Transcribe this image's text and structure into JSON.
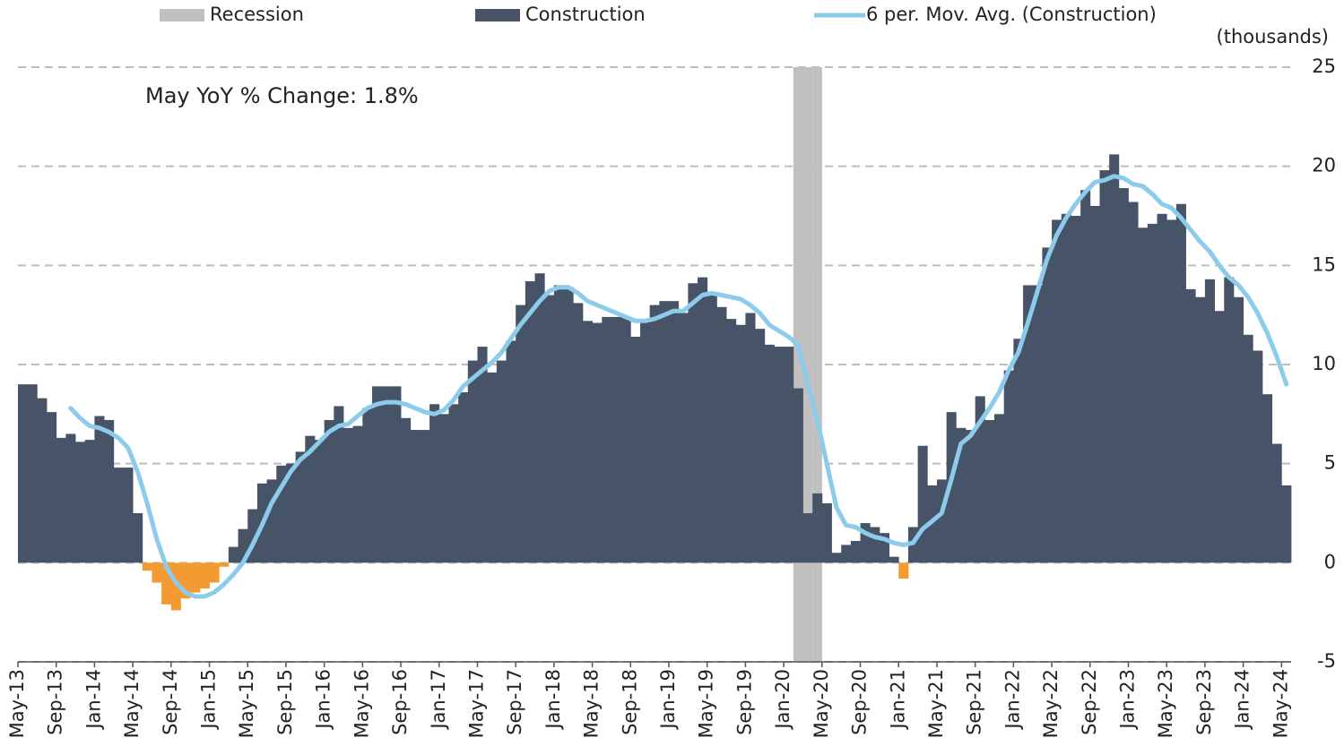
{
  "chart_data": {
    "type": "combo",
    "annotation": "May YoY % Change: 1.8%",
    "y_label": "(thousands)",
    "negative_color": "#f39a32",
    "categories": [
      "May-13",
      null,
      null,
      null,
      "Sep-13",
      null,
      null,
      null,
      "Jan-14",
      null,
      null,
      null,
      "May-14",
      null,
      null,
      null,
      "Sep-14",
      null,
      null,
      null,
      "Jan-15",
      null,
      null,
      null,
      "May-15",
      null,
      null,
      null,
      "Sep-15",
      null,
      null,
      null,
      "Jan-16",
      null,
      null,
      null,
      "May-16",
      null,
      null,
      null,
      "Sep-16",
      null,
      null,
      null,
      "Jan-17",
      null,
      null,
      null,
      "May-17",
      null,
      null,
      null,
      "Sep-17",
      null,
      null,
      null,
      "Jan-18",
      null,
      null,
      null,
      "May-18",
      null,
      null,
      null,
      "Sep-18",
      null,
      null,
      null,
      "Jan-19",
      null,
      null,
      null,
      "May-19",
      null,
      null,
      null,
      "Sep-19",
      null,
      null,
      null,
      "Jan-20",
      null,
      null,
      null,
      "May-20",
      null,
      null,
      null,
      "Sep-20",
      null,
      null,
      null,
      "Jan-21",
      null,
      null,
      null,
      "May-21",
      null,
      null,
      null,
      "Sep-21",
      null,
      null,
      null,
      "Jan-22",
      null,
      null,
      null,
      "May-22",
      null,
      null,
      null,
      "Sep-22",
      null,
      null,
      null,
      "Jan-23",
      null,
      null,
      null,
      "May-23",
      null,
      null,
      null,
      "Sep-23",
      null,
      null,
      null,
      "Jan-24",
      null,
      null,
      null,
      "May-24"
    ],
    "series": [
      {
        "name": "Recession",
        "type": "band",
        "color": "#c0c0c0",
        "values": [
          null,
          null,
          null,
          null,
          null,
          null,
          null,
          null,
          null,
          null,
          null,
          null,
          null,
          null,
          null,
          null,
          null,
          null,
          null,
          null,
          null,
          null,
          null,
          null,
          null,
          null,
          null,
          null,
          null,
          null,
          null,
          null,
          null,
          null,
          null,
          null,
          null,
          null,
          null,
          null,
          null,
          null,
          null,
          null,
          null,
          null,
          null,
          null,
          null,
          null,
          null,
          null,
          null,
          null,
          null,
          null,
          null,
          null,
          null,
          null,
          null,
          null,
          null,
          null,
          null,
          null,
          null,
          null,
          null,
          null,
          null,
          null,
          null,
          null,
          null,
          null,
          null,
          null,
          null,
          null,
          null,
          25,
          25,
          25,
          null,
          null,
          null,
          null,
          null,
          null,
          null,
          null,
          null,
          null,
          null,
          null,
          null,
          null,
          null,
          null,
          null,
          null,
          null,
          null,
          null,
          null,
          null,
          null,
          null,
          null,
          null,
          null,
          null,
          null,
          null,
          null,
          null,
          null,
          null,
          null,
          null,
          null,
          null,
          null,
          null,
          null,
          null,
          null,
          null,
          null,
          null,
          null,
          null
        ]
      },
      {
        "name": "Construction",
        "type": "bar",
        "color": "#475468",
        "values": [
          9.0,
          9.0,
          8.3,
          7.6,
          6.3,
          6.5,
          6.1,
          6.2,
          7.4,
          7.2,
          4.8,
          4.8,
          2.5,
          -0.4,
          -1.0,
          -2.1,
          -2.4,
          -1.8,
          -1.5,
          -1.3,
          -1.0,
          -0.2,
          0.8,
          1.7,
          2.7,
          4.0,
          4.2,
          4.9,
          5.0,
          5.6,
          6.4,
          6.2,
          7.2,
          7.9,
          6.8,
          6.9,
          7.8,
          8.9,
          8.9,
          8.9,
          7.3,
          6.7,
          6.7,
          8.0,
          7.5,
          8.0,
          8.6,
          10.2,
          10.9,
          9.6,
          10.2,
          11.2,
          13.0,
          14.2,
          14.6,
          13.5,
          14.0,
          13.9,
          13.1,
          12.2,
          12.1,
          12.4,
          12.4,
          12.4,
          11.4,
          12.2,
          13.0,
          13.2,
          13.2,
          12.6,
          14.1,
          14.4,
          13.5,
          12.9,
          12.3,
          12.0,
          12.6,
          11.8,
          11.0,
          10.9,
          10.9,
          8.8,
          2.5,
          3.5,
          3.0,
          0.5,
          0.9,
          1.1,
          2.0,
          1.8,
          1.5,
          0.3,
          -0.8,
          1.8,
          5.9,
          3.9,
          4.2,
          7.6,
          6.8,
          6.7,
          8.4,
          7.2,
          7.5,
          9.7,
          11.3,
          14.0,
          14.0,
          15.9,
          17.3,
          17.6,
          17.5,
          18.8,
          18.0,
          19.8,
          20.6,
          18.9,
          18.2,
          16.9,
          17.1,
          17.6,
          17.3,
          18.1,
          13.8,
          13.4,
          14.3,
          12.7,
          14.4,
          13.4,
          11.5,
          10.7,
          8.5,
          6.0,
          3.9
        ]
      },
      {
        "name": "6 per. Mov. Avg. (Construction)",
        "type": "line",
        "color": "#8ccbec",
        "values": [
          null,
          null,
          null,
          null,
          null,
          7.8,
          7.3,
          6.9,
          6.8,
          6.6,
          6.3,
          5.8,
          4.6,
          3.0,
          1.2,
          -0.2,
          -1.0,
          -1.5,
          -1.7,
          -1.7,
          -1.5,
          -1.1,
          -0.6,
          0.0,
          0.9,
          1.9,
          3.0,
          3.8,
          4.6,
          5.2,
          5.6,
          6.1,
          6.6,
          6.9,
          7.0,
          7.4,
          7.8,
          8.0,
          8.1,
          8.1,
          8.0,
          7.8,
          7.6,
          7.5,
          7.7,
          8.2,
          8.9,
          9.3,
          9.7,
          10.1,
          10.6,
          11.3,
          12.0,
          12.6,
          13.2,
          13.7,
          13.9,
          13.9,
          13.6,
          13.2,
          13.0,
          12.8,
          12.6,
          12.4,
          12.2,
          12.2,
          12.3,
          12.5,
          12.7,
          12.7,
          13.1,
          13.5,
          13.6,
          13.5,
          13.4,
          13.3,
          13.0,
          12.6,
          12.0,
          11.7,
          11.4,
          11.0,
          9.0,
          7.2,
          5.0,
          2.8,
          1.9,
          1.8,
          1.5,
          1.3,
          1.2,
          1.0,
          0.9,
          1.0,
          1.7,
          2.1,
          2.5,
          4.2,
          6.0,
          6.4,
          7.1,
          7.8,
          8.6,
          9.7,
          10.6,
          12.1,
          13.7,
          15.3,
          16.5,
          17.4,
          18.1,
          18.7,
          19.2,
          19.3,
          19.5,
          19.4,
          19.1,
          19.0,
          18.6,
          18.1,
          17.9,
          17.4,
          16.8,
          16.2,
          15.7,
          15.0,
          14.4,
          14.0,
          13.4,
          12.6,
          11.6,
          10.4,
          9.0
        ]
      }
    ],
    "ylim": [
      -5,
      25
    ],
    "yticks": [
      -5,
      0,
      5,
      10,
      15,
      20,
      25
    ],
    "grid": true
  }
}
